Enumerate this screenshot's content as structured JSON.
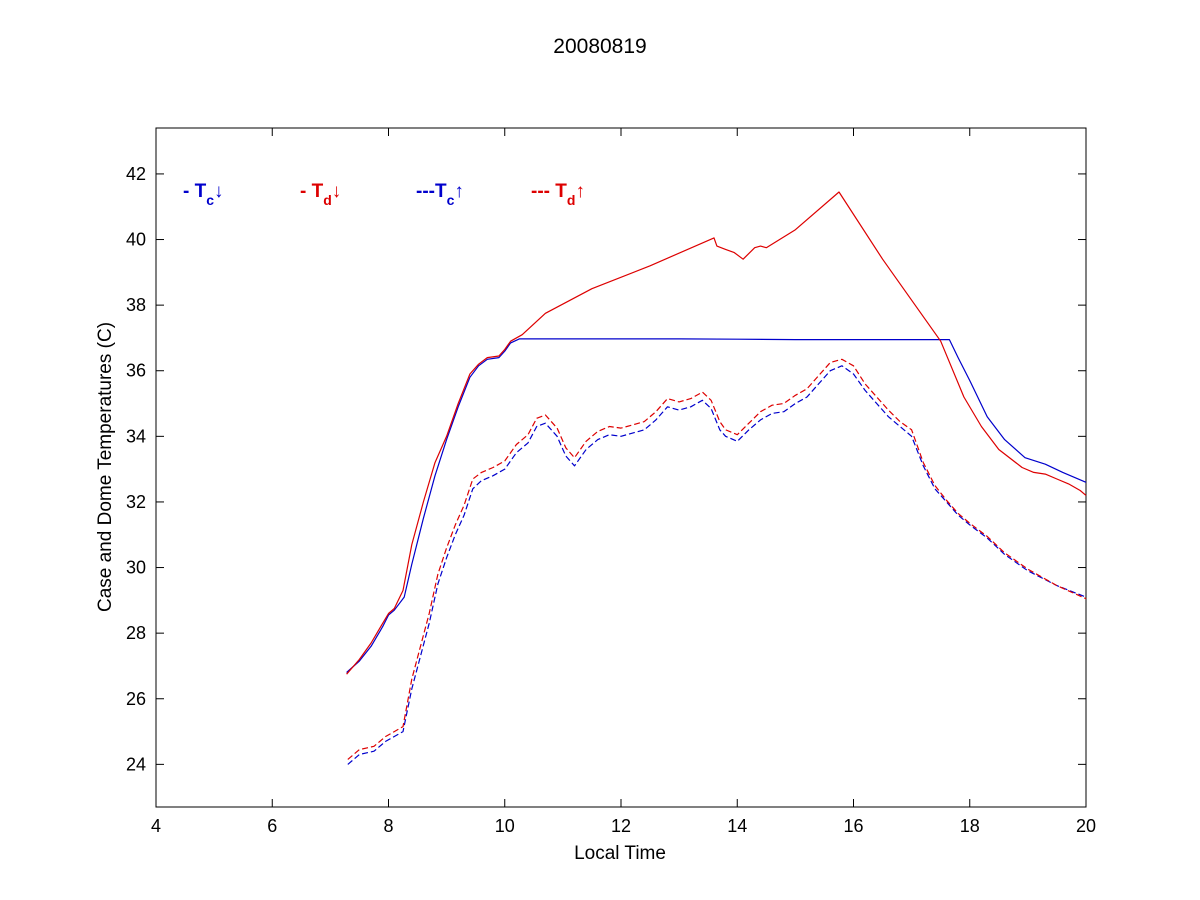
{
  "chart_data": {
    "type": "line",
    "title": "20080819",
    "xlabel": "Local Time",
    "ylabel": "Case and Dome Temperatures (C)",
    "xlim": [
      4,
      20
    ],
    "ylim": [
      22.7,
      43.4
    ],
    "xticks": [
      4,
      6,
      8,
      10,
      12,
      14,
      16,
      18,
      20
    ],
    "yticks": [
      24,
      26,
      28,
      30,
      32,
      34,
      36,
      38,
      40,
      42
    ],
    "grid": false,
    "legend": {
      "placement": "top-left",
      "entries": [
        {
          "prefix": "- T",
          "sub": "c",
          "arrow": "↓",
          "color": "#0000cc"
        },
        {
          "prefix": "- T",
          "sub": "d",
          "arrow": "↓",
          "color": "#dd0000"
        },
        {
          "prefix": "---T",
          "sub": "c",
          "arrow": "↑",
          "color": "#0000cc"
        },
        {
          "prefix": "--- T",
          "sub": "d",
          "arrow": "↑",
          "color": "#dd0000"
        }
      ]
    },
    "series": [
      {
        "color": "#0000cc",
        "dash": "solid",
        "x": [
          7.28,
          7.5,
          7.7,
          7.9,
          8.0,
          8.1,
          8.27,
          8.4,
          8.6,
          8.8,
          9.0,
          9.2,
          9.4,
          9.55,
          9.7,
          9.9,
          10.0,
          10.1,
          10.25,
          11.0,
          12.0,
          13.0,
          14.0,
          15.0,
          16.0,
          17.0,
          17.65,
          17.8,
          18.0,
          18.3,
          18.6,
          18.95,
          19.3,
          19.6,
          20.0
        ],
        "y": [
          26.8,
          27.15,
          27.6,
          28.2,
          28.55,
          28.7,
          29.1,
          30.1,
          31.5,
          32.8,
          33.9,
          34.9,
          35.8,
          36.15,
          36.35,
          36.4,
          36.6,
          36.85,
          36.97,
          36.97,
          36.97,
          36.97,
          36.96,
          36.95,
          36.95,
          36.95,
          36.95,
          36.4,
          35.7,
          34.6,
          33.9,
          33.35,
          33.15,
          32.9,
          32.6
        ]
      },
      {
        "color": "#dd0000",
        "dash": "solid",
        "x": [
          7.28,
          7.5,
          7.7,
          7.9,
          8.0,
          8.1,
          8.25,
          8.4,
          8.6,
          8.8,
          9.0,
          9.2,
          9.4,
          9.55,
          9.7,
          9.9,
          10.0,
          10.1,
          10.3,
          10.7,
          11.5,
          12.5,
          13.6,
          13.65,
          13.8,
          13.95,
          14.1,
          14.3,
          14.4,
          14.5,
          15.0,
          15.75,
          16.5,
          17.5,
          17.9,
          18.2,
          18.5,
          18.9,
          19.1,
          19.3,
          19.5,
          19.7,
          19.9,
          20.0
        ],
        "y": [
          26.75,
          27.2,
          27.7,
          28.3,
          28.6,
          28.75,
          29.3,
          30.7,
          32.0,
          33.2,
          34.0,
          35.0,
          35.9,
          36.2,
          36.4,
          36.45,
          36.65,
          36.9,
          37.1,
          37.75,
          38.5,
          39.2,
          40.05,
          39.8,
          39.7,
          39.6,
          39.4,
          39.75,
          39.8,
          39.75,
          40.3,
          41.45,
          39.4,
          36.9,
          35.2,
          34.3,
          33.6,
          33.05,
          32.9,
          32.85,
          32.7,
          32.55,
          32.35,
          32.2
        ]
      },
      {
        "color": "#0000cc",
        "dash": "dashed",
        "x": [
          7.3,
          7.5,
          7.75,
          7.95,
          8.1,
          8.25,
          8.4,
          8.55,
          8.7,
          8.85,
          9.0,
          9.15,
          9.3,
          9.45,
          9.6,
          9.8,
          10.0,
          10.2,
          10.4,
          10.55,
          10.7,
          10.9,
          11.05,
          11.2,
          11.4,
          11.6,
          11.8,
          12.0,
          12.2,
          12.4,
          12.6,
          12.8,
          13.0,
          13.2,
          13.4,
          13.55,
          13.7,
          13.8,
          14.0,
          14.2,
          14.4,
          14.6,
          14.8,
          15.0,
          15.2,
          15.4,
          15.6,
          15.8,
          16.0,
          16.2,
          16.4,
          16.6,
          16.8,
          17.0,
          17.2,
          17.4,
          17.6,
          17.8,
          18.0,
          18.3,
          18.6,
          19.0,
          19.5,
          20.0
        ],
        "y": [
          24.0,
          24.3,
          24.4,
          24.7,
          24.85,
          25.0,
          26.3,
          27.3,
          28.3,
          29.5,
          30.3,
          31.0,
          31.6,
          32.4,
          32.65,
          32.8,
          33.0,
          33.5,
          33.8,
          34.3,
          34.4,
          34.0,
          33.4,
          33.1,
          33.6,
          33.9,
          34.05,
          34.0,
          34.1,
          34.2,
          34.5,
          34.9,
          34.8,
          34.9,
          35.1,
          34.85,
          34.2,
          34.0,
          33.85,
          34.2,
          34.5,
          34.7,
          34.75,
          35.0,
          35.2,
          35.6,
          36.0,
          36.15,
          35.9,
          35.4,
          35.0,
          34.6,
          34.3,
          34.0,
          33.1,
          32.4,
          32.0,
          31.6,
          31.3,
          30.9,
          30.4,
          29.9,
          29.45,
          29.1
        ]
      },
      {
        "color": "#dd0000",
        "dash": "dashed",
        "x": [
          7.3,
          7.5,
          7.75,
          7.95,
          8.1,
          8.25,
          8.4,
          8.55,
          8.7,
          8.85,
          9.0,
          9.15,
          9.3,
          9.45,
          9.6,
          9.8,
          10.0,
          10.2,
          10.4,
          10.55,
          10.7,
          10.9,
          11.05,
          11.2,
          11.4,
          11.6,
          11.8,
          12.0,
          12.2,
          12.4,
          12.6,
          12.8,
          13.0,
          13.2,
          13.4,
          13.55,
          13.7,
          13.8,
          14.0,
          14.2,
          14.4,
          14.6,
          14.8,
          15.0,
          15.2,
          15.4,
          15.6,
          15.8,
          16.0,
          16.2,
          16.4,
          16.6,
          16.8,
          17.0,
          17.2,
          17.4,
          17.6,
          17.8,
          18.0,
          18.3,
          18.6,
          19.0,
          19.5,
          20.0
        ],
        "y": [
          24.15,
          24.45,
          24.55,
          24.85,
          25.0,
          25.15,
          26.6,
          27.6,
          28.6,
          29.8,
          30.6,
          31.3,
          31.9,
          32.7,
          32.9,
          33.05,
          33.25,
          33.75,
          34.05,
          34.55,
          34.65,
          34.25,
          33.65,
          33.35,
          33.85,
          34.15,
          34.3,
          34.25,
          34.35,
          34.45,
          34.75,
          35.15,
          35.05,
          35.15,
          35.35,
          35.1,
          34.45,
          34.2,
          34.05,
          34.4,
          34.75,
          34.95,
          35.0,
          35.25,
          35.45,
          35.85,
          36.25,
          36.35,
          36.15,
          35.6,
          35.2,
          34.8,
          34.45,
          34.2,
          33.2,
          32.5,
          32.05,
          31.65,
          31.35,
          30.95,
          30.45,
          29.95,
          29.45,
          29.05
        ]
      }
    ]
  }
}
